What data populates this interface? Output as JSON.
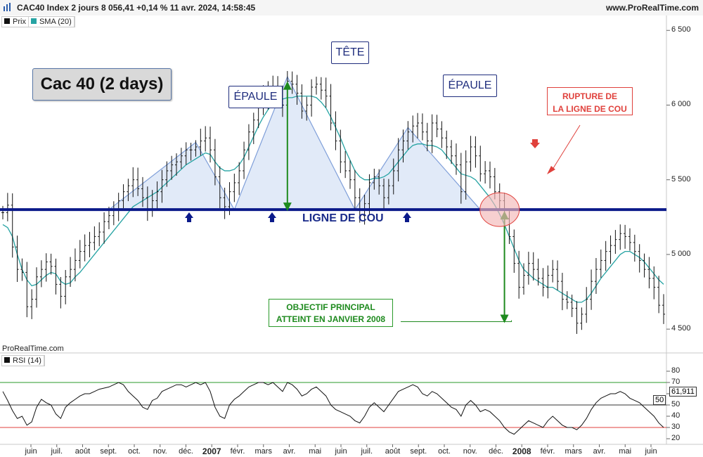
{
  "header": {
    "title": "CAC40 Index 2 jours 8 056,41 +0,14 % 11 avr. 2024, 14:58:45",
    "site": "www.ProRealTime.com"
  },
  "legend": {
    "price": "Prix",
    "sma": "SMA (20)",
    "rsi": "RSI (14)",
    "price_color": "#111111",
    "sma_color": "#26a3a3",
    "rsi_color": "#111111"
  },
  "annotations": {
    "title": "Cac 40 (2 days)",
    "left_shoulder": "ÉPAULE",
    "head": "TÊTE",
    "right_shoulder": "ÉPAULE",
    "neckline": "LIGNE DE COU",
    "rupture_line1": "RUPTURE DE",
    "rupture_line2": "LA LIGNE DE COU",
    "objective_line1": "OBJECTIF PRINCIPAL",
    "objective_line2": "ATTEINT EN JANVIER 2008",
    "watermark": "ProRealTime.com"
  },
  "colors": {
    "neckline": "#0b1a8a",
    "pattern_fill": "#dce6f7",
    "pattern_stroke": "#7f9fd9",
    "objective": "#1e8a1e",
    "rupture": "#e0413c",
    "arrow_blue": "#0b1a8a"
  },
  "chart_data": [
    {
      "type": "ohlc",
      "panel": "price",
      "ylim": [
        4350,
        6600
      ],
      "yticks": [
        4500,
        5000,
        5500,
        6000,
        6500
      ],
      "ytick_labels": [
        "4 500",
        "5 000",
        "5 500",
        "6 000",
        "6 500"
      ],
      "neckline": 5300,
      "objective": 4550,
      "x_labels": [
        "juin",
        "juil.",
        "août",
        "sept.",
        "oct.",
        "nov.",
        "déc.",
        "2007",
        "févr.",
        "mars",
        "avr.",
        "mai",
        "juin",
        "juil.",
        "août",
        "sept.",
        "oct.",
        "nov.",
        "déc.",
        "2008",
        "févr.",
        "mars",
        "avr.",
        "mai",
        "juin"
      ],
      "series": [
        {
          "name": "Prix",
          "close": [
            5280,
            5330,
            5050,
            4900,
            4880,
            4650,
            4700,
            4850,
            4900,
            4950,
            4920,
            4800,
            4720,
            4850,
            4900,
            4960,
            5020,
            5060,
            5080,
            5120,
            5150,
            5220,
            5260,
            5300,
            5360,
            5420,
            5460,
            5500,
            5440,
            5380,
            5300,
            5360,
            5420,
            5500,
            5560,
            5600,
            5620,
            5660,
            5700,
            5700,
            5720,
            5760,
            5780,
            5700,
            5520,
            5380,
            5320,
            5420,
            5480,
            5560,
            5700,
            5820,
            5900,
            6000,
            6050,
            6080,
            6120,
            6060,
            6000,
            6160,
            6140,
            6080,
            5960,
            6000,
            6120,
            6140,
            6100,
            6060,
            5880,
            5760,
            5620,
            5560,
            5500,
            5380,
            5260,
            5340,
            5480,
            5520,
            5460,
            5380,
            5460,
            5560,
            5700,
            5760,
            5820,
            5860,
            5880,
            5820,
            5760,
            5880,
            5840,
            5780,
            5720,
            5660,
            5600,
            5420,
            5620,
            5720,
            5660,
            5540,
            5560,
            5520,
            5420,
            5360,
            5240,
            5120,
            4940,
            4780,
            4860,
            4940,
            4900,
            4840,
            4780,
            4860,
            4900,
            4820,
            4700,
            4680,
            4640,
            4540,
            4600,
            4700,
            4820,
            4900,
            4960,
            5020,
            5060,
            5100,
            5140,
            5120,
            5080,
            5020,
            4960,
            4900,
            4840,
            4780,
            4660,
            4600
          ]
        },
        {
          "name": "SMA (20)",
          "values": [
            5200,
            5180,
            5120,
            5000,
            4900,
            4830,
            4790,
            4800,
            4830,
            4860,
            4880,
            4870,
            4820,
            4800,
            4810,
            4850,
            4880,
            4920,
            4960,
            5000,
            5040,
            5080,
            5120,
            5160,
            5200,
            5240,
            5280,
            5320,
            5340,
            5360,
            5380,
            5400,
            5420,
            5450,
            5480,
            5510,
            5540,
            5570,
            5600,
            5620,
            5640,
            5660,
            5680,
            5670,
            5620,
            5580,
            5560,
            5560,
            5570,
            5600,
            5650,
            5720,
            5790,
            5860,
            5920,
            5970,
            6010,
            6030,
            6040,
            6050,
            6050,
            6060,
            6060,
            6060,
            6060,
            6050,
            6020,
            5980,
            5920,
            5850,
            5780,
            5700,
            5630,
            5560,
            5520,
            5500,
            5500,
            5510,
            5510,
            5520,
            5540,
            5580,
            5620,
            5660,
            5700,
            5730,
            5740,
            5740,
            5730,
            5730,
            5720,
            5700,
            5660,
            5620,
            5580,
            5540,
            5530,
            5520,
            5500,
            5460,
            5420,
            5380,
            5330,
            5270,
            5200,
            5120,
            5040,
            4960,
            4900,
            4870,
            4840,
            4820,
            4800,
            4780,
            4780,
            4760,
            4740,
            4720,
            4700,
            4680,
            4680,
            4700,
            4740,
            4790,
            4840,
            4880,
            4920,
            4960,
            5000,
            5020,
            5020,
            5000,
            4980,
            4950,
            4910,
            4870,
            4830,
            4800
          ]
        }
      ]
    },
    {
      "type": "line",
      "panel": "rsi",
      "ylim": [
        15,
        85
      ],
      "yticks": [
        20,
        30,
        40,
        50,
        60,
        70,
        80
      ],
      "ytick_labels": [
        "20",
        "30",
        "40",
        "50",
        "60",
        "70",
        "80"
      ],
      "levels": [
        30,
        50,
        70
      ],
      "last_value_label": "61,911",
      "level_label": "50",
      "series": [
        {
          "name": "RSI (14)",
          "values": [
            62,
            54,
            45,
            38,
            40,
            32,
            35,
            48,
            55,
            52,
            50,
            42,
            38,
            48,
            52,
            55,
            58,
            60,
            60,
            62,
            64,
            65,
            66,
            68,
            70,
            68,
            62,
            58,
            54,
            48,
            46,
            54,
            56,
            62,
            64,
            66,
            68,
            68,
            66,
            68,
            70,
            68,
            70,
            62,
            48,
            40,
            38,
            50,
            55,
            58,
            62,
            66,
            68,
            70,
            70,
            68,
            70,
            66,
            62,
            70,
            68,
            64,
            58,
            60,
            64,
            66,
            62,
            58,
            50,
            46,
            44,
            42,
            40,
            36,
            34,
            40,
            48,
            52,
            48,
            44,
            50,
            56,
            62,
            64,
            66,
            68,
            66,
            60,
            58,
            62,
            60,
            56,
            52,
            48,
            46,
            40,
            50,
            54,
            50,
            44,
            46,
            44,
            40,
            36,
            30,
            26,
            24,
            28,
            32,
            36,
            34,
            32,
            30,
            36,
            40,
            36,
            32,
            30,
            30,
            28,
            32,
            38,
            46,
            52,
            56,
            58,
            60,
            60,
            62,
            60,
            56,
            54,
            52,
            48,
            44,
            40,
            34,
            30
          ]
        }
      ]
    }
  ]
}
